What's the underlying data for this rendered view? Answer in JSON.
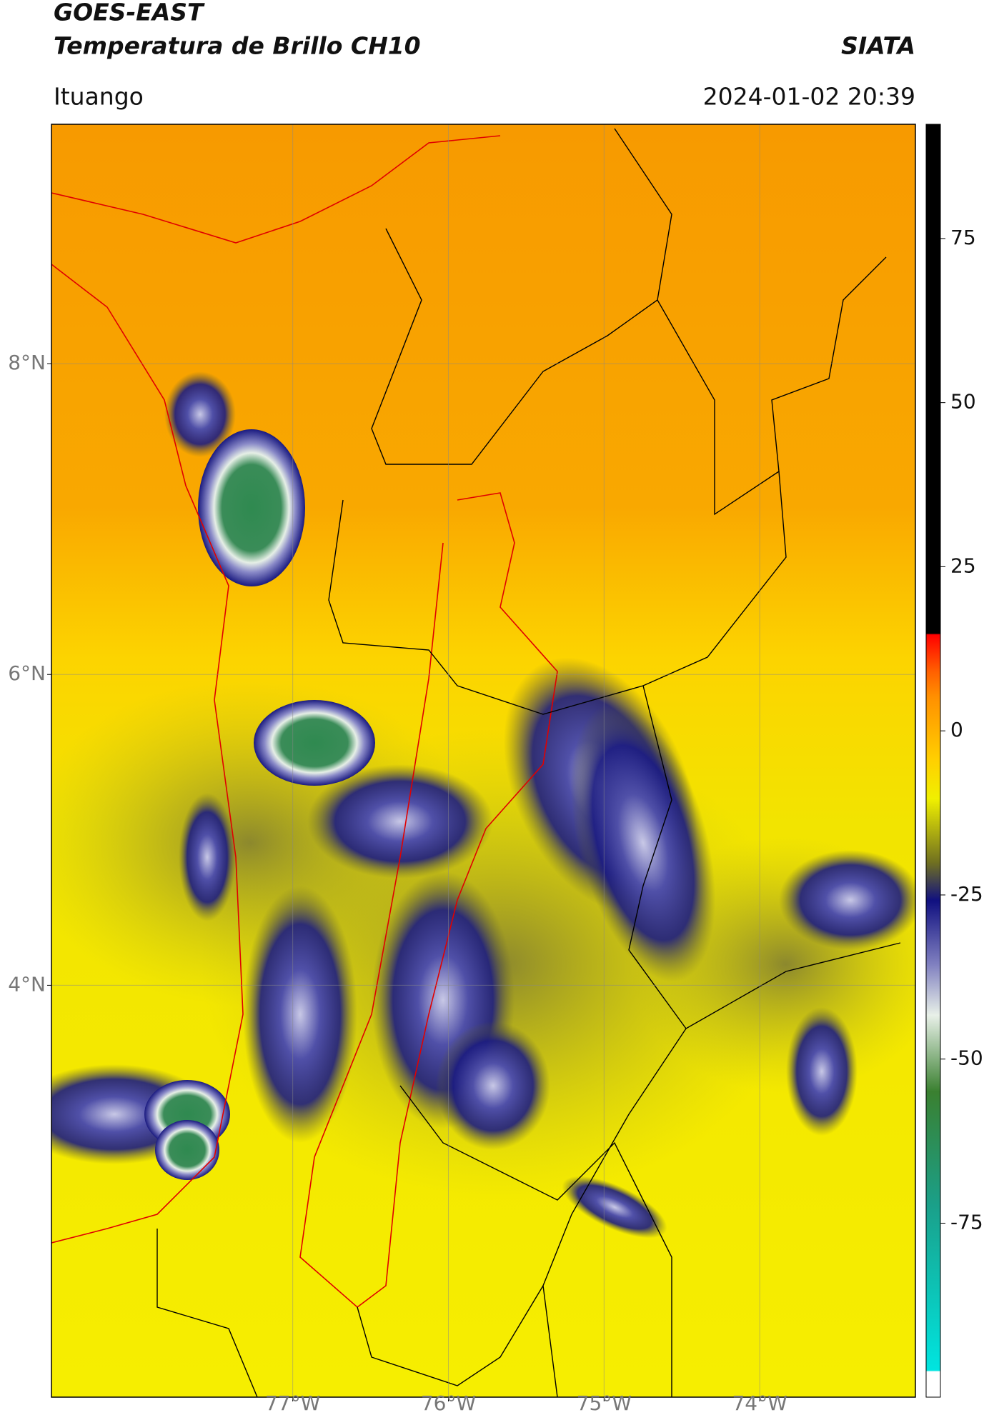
{
  "header": {
    "title": "GOES-EAST",
    "subtitle": "Temperatura de Brillo CH10",
    "source": "SIATA",
    "location": "Ituango",
    "datetime": "2024-01-02 20:39"
  },
  "map": {
    "xlim": [
      -78.55,
      -73.0
    ],
    "ylim": [
      1.35,
      9.54
    ],
    "xticks": [
      {
        "value": -77,
        "label": "77°W"
      },
      {
        "value": -76,
        "label": "76°W"
      },
      {
        "value": -75,
        "label": "75°W"
      },
      {
        "value": -74,
        "label": "74°W"
      }
    ],
    "yticks": [
      {
        "value": 4,
        "label": "4°N"
      },
      {
        "value": 6,
        "label": "6°N"
      },
      {
        "value": 8,
        "label": "8°N"
      }
    ],
    "grid": true
  },
  "colorbar": {
    "lim": [
      -101.5,
      92.4
    ],
    "ticks": [
      -75,
      -50,
      -25,
      0,
      25,
      50,
      75
    ]
  }
}
